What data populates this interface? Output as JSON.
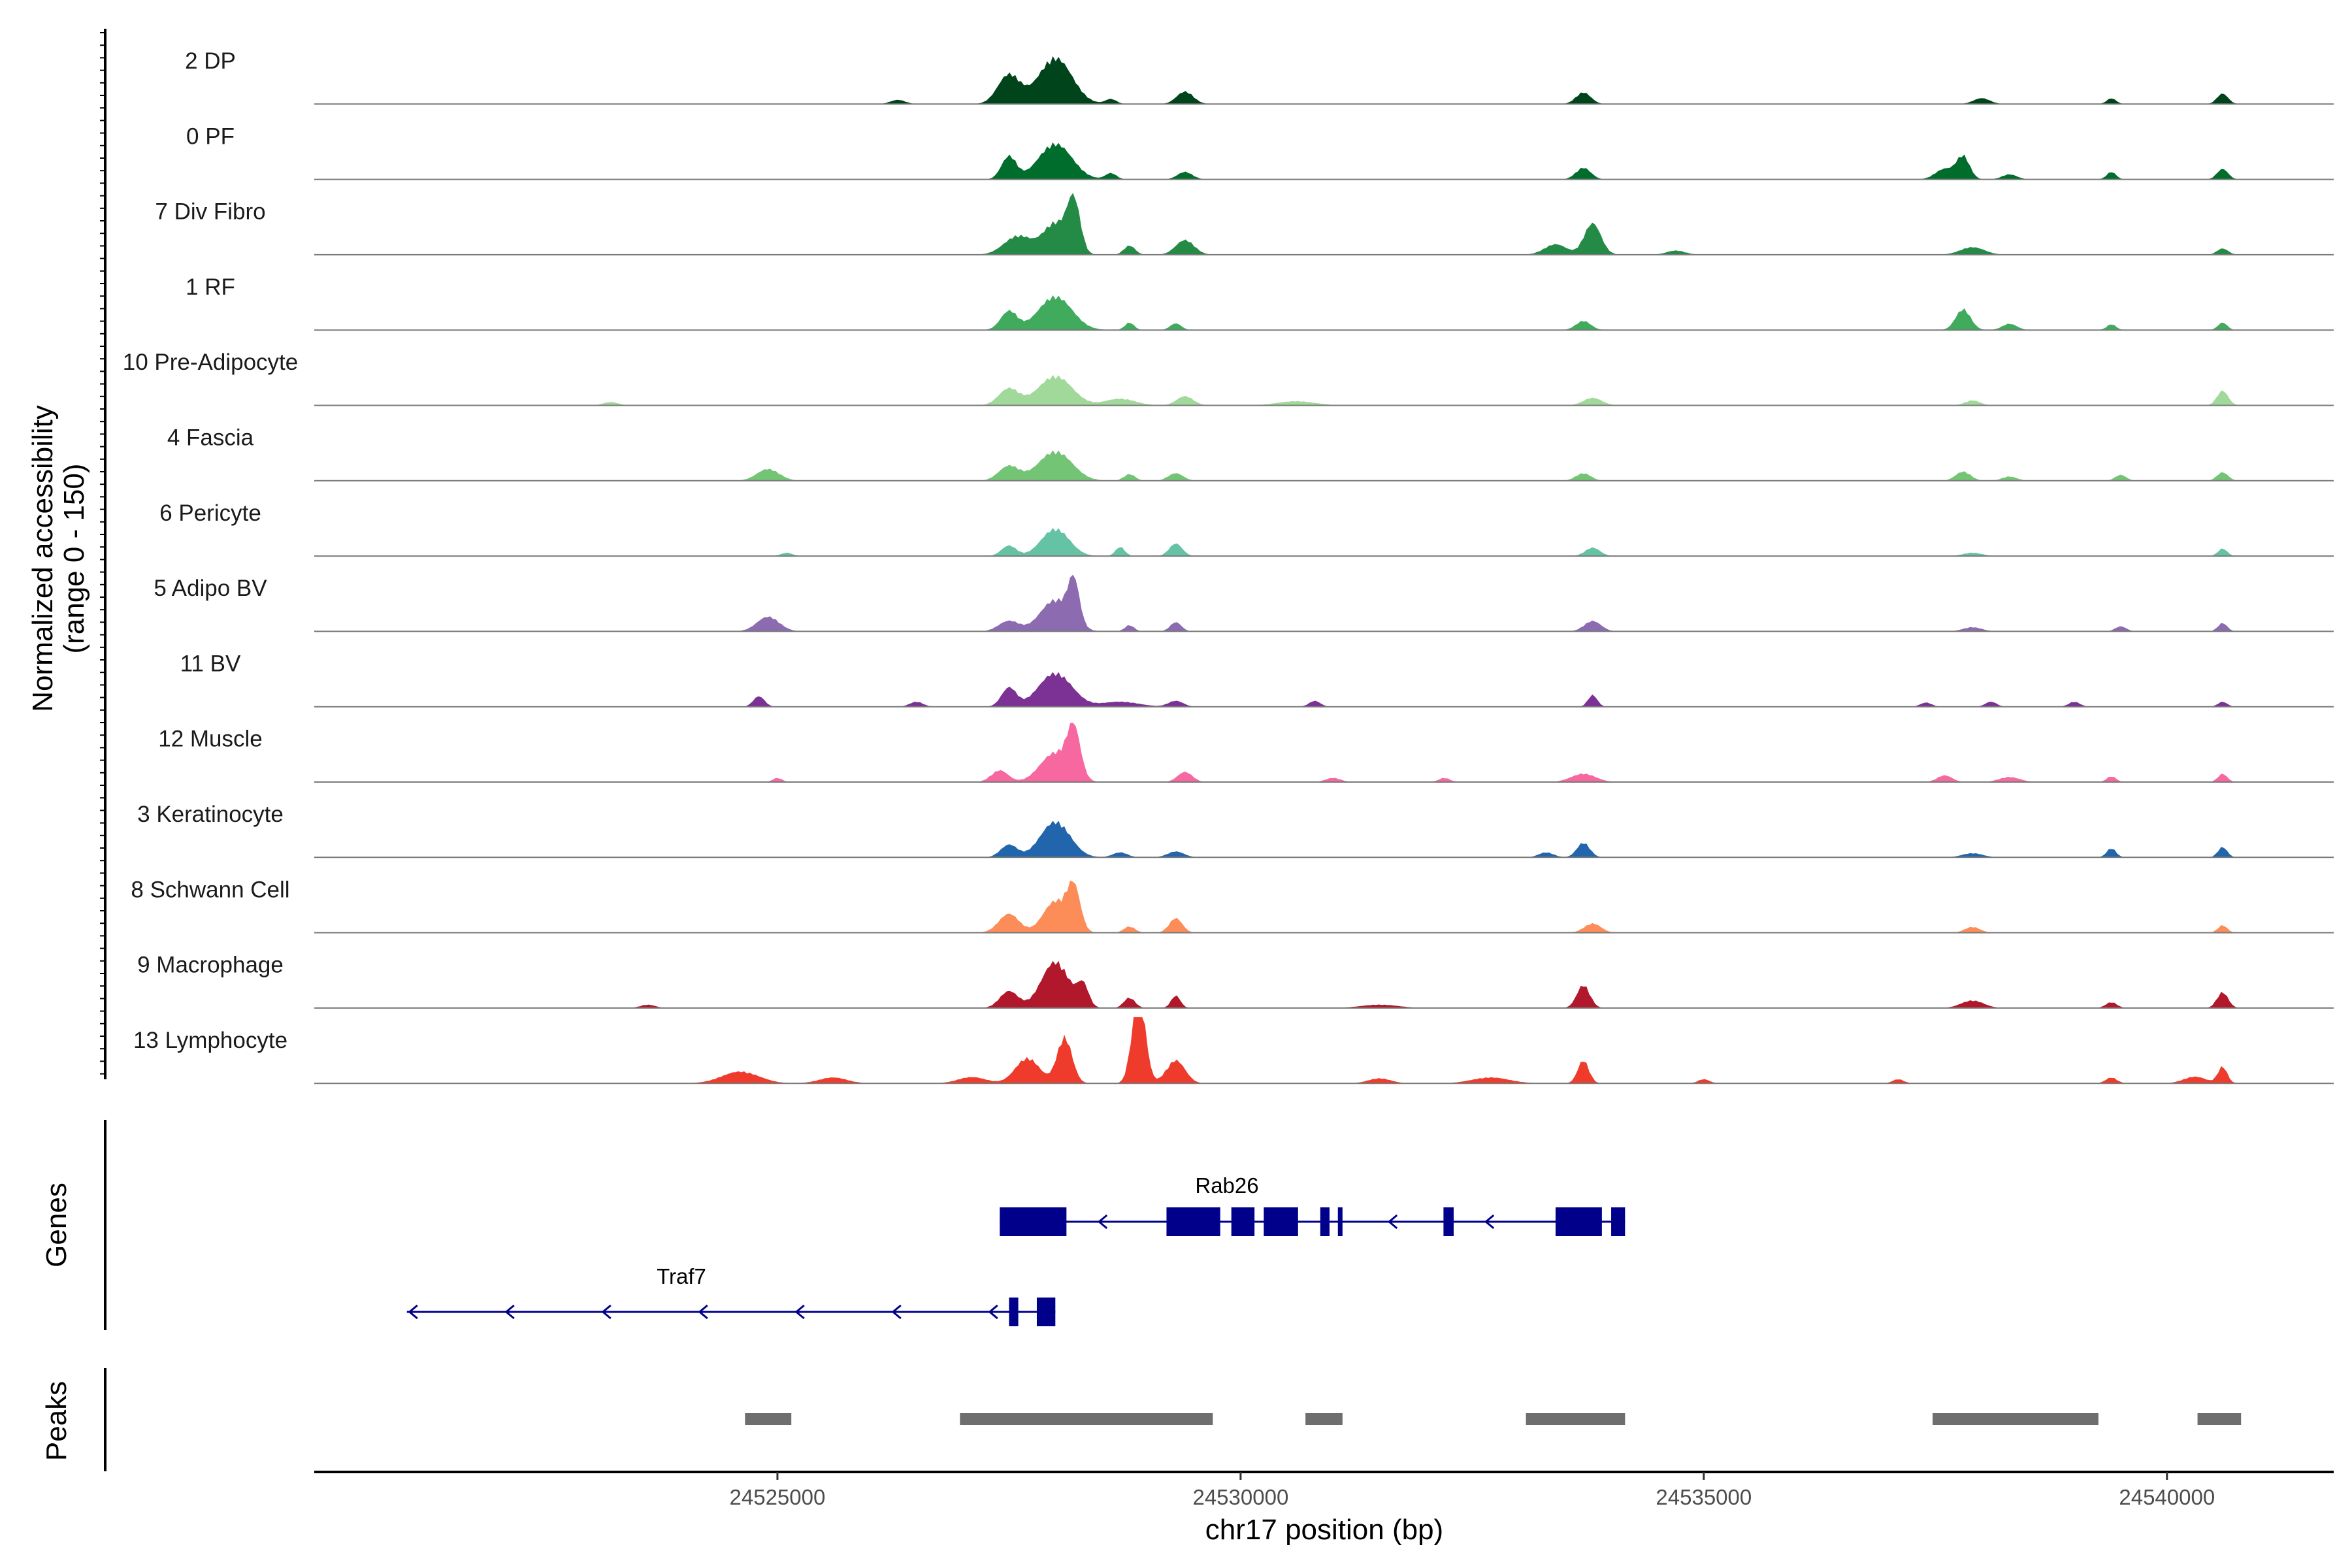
{
  "chart_data": {
    "type": "area",
    "ylabel_lines": [
      "Normalized accessibility",
      "(range 0 - 150)"
    ],
    "xlabel": "chr17 position (bp)",
    "xlim": [
      24520000,
      24541800
    ],
    "x_ticks": [
      24525000,
      24530000,
      24535000,
      24540000
    ],
    "x_tick_labels": [
      "24525000",
      "24530000",
      "24535000",
      "24540000"
    ],
    "y_range": [
      0,
      150
    ],
    "tracks": [
      {
        "name": "2 DP",
        "color": "#00441b",
        "peaks": [
          [
            24526300,
            10,
            80
          ],
          [
            24527500,
            70,
            120
          ],
          [
            24528000,
            110,
            180
          ],
          [
            24528600,
            12,
            60
          ],
          [
            24529400,
            30,
            90
          ],
          [
            24533700,
            28,
            80
          ],
          [
            24538000,
            14,
            90
          ],
          [
            24539400,
            14,
            50
          ],
          [
            24540600,
            25,
            60
          ]
        ]
      },
      {
        "name": "0 PF",
        "color": "#006d2c",
        "peaks": [
          [
            24527500,
            55,
            80
          ],
          [
            24528000,
            85,
            180
          ],
          [
            24528600,
            15,
            60
          ],
          [
            24529400,
            18,
            80
          ],
          [
            24533700,
            28,
            80
          ],
          [
            24537600,
            25,
            100
          ],
          [
            24537800,
            55,
            70
          ],
          [
            24538300,
            12,
            80
          ],
          [
            24539400,
            18,
            50
          ],
          [
            24540600,
            25,
            60
          ]
        ]
      },
      {
        "name": "7 Div Fibro",
        "color": "#238b45",
        "peaks": [
          [
            24527600,
            45,
            150
          ],
          [
            24528000,
            75,
            130
          ],
          [
            24528200,
            120,
            70
          ],
          [
            24528800,
            22,
            60
          ],
          [
            24529400,
            35,
            100
          ],
          [
            24533400,
            25,
            120
          ],
          [
            24533800,
            75,
            90
          ],
          [
            24534700,
            10,
            100
          ],
          [
            24537900,
            18,
            130
          ],
          [
            24540600,
            15,
            60
          ]
        ]
      },
      {
        "name": "1 RF",
        "color": "#41ab5d",
        "peaks": [
          [
            24527500,
            45,
            90
          ],
          [
            24528000,
            80,
            180
          ],
          [
            24528800,
            18,
            50
          ],
          [
            24529300,
            16,
            60
          ],
          [
            24533700,
            22,
            80
          ],
          [
            24537800,
            50,
            80
          ],
          [
            24538300,
            15,
            80
          ],
          [
            24539400,
            14,
            50
          ],
          [
            24540600,
            18,
            50
          ]
        ]
      },
      {
        "name": "10 Pre-Adipocyte",
        "color": "#a1d99b",
        "peaks": [
          [
            24523200,
            8,
            80
          ],
          [
            24527500,
            40,
            110
          ],
          [
            24528000,
            70,
            180
          ],
          [
            24528700,
            16,
            160
          ],
          [
            24529400,
            22,
            90
          ],
          [
            24530600,
            10,
            200
          ],
          [
            24533800,
            18,
            100
          ],
          [
            24537900,
            12,
            80
          ],
          [
            24540600,
            35,
            60
          ]
        ]
      },
      {
        "name": "4 Fascia",
        "color": "#74c476",
        "peaks": [
          [
            24524900,
            28,
            120
          ],
          [
            24527500,
            35,
            110
          ],
          [
            24528000,
            70,
            180
          ],
          [
            24528800,
            16,
            60
          ],
          [
            24529300,
            18,
            80
          ],
          [
            24533700,
            18,
            80
          ],
          [
            24537800,
            22,
            80
          ],
          [
            24538300,
            10,
            80
          ],
          [
            24539500,
            14,
            60
          ],
          [
            24540600,
            20,
            60
          ]
        ]
      },
      {
        "name": "6 Pericyte",
        "color": "#66c2a4",
        "peaks": [
          [
            24525100,
            8,
            60
          ],
          [
            24527500,
            25,
            80
          ],
          [
            24528000,
            65,
            150
          ],
          [
            24528700,
            22,
            50
          ],
          [
            24529300,
            30,
            70
          ],
          [
            24533800,
            20,
            80
          ],
          [
            24537900,
            8,
            100
          ],
          [
            24540600,
            18,
            50
          ]
        ]
      },
      {
        "name": "5 Adipo BV",
        "color": "#8c6bb1",
        "peaks": [
          [
            24524900,
            35,
            120
          ],
          [
            24527500,
            25,
            110
          ],
          [
            24528000,
            75,
            160
          ],
          [
            24528200,
            100,
            60
          ],
          [
            24528800,
            15,
            50
          ],
          [
            24529300,
            22,
            60
          ],
          [
            24533800,
            25,
            90
          ],
          [
            24537900,
            10,
            100
          ],
          [
            24539500,
            12,
            60
          ],
          [
            24540600,
            20,
            50
          ]
        ]
      },
      {
        "name": "11 BV",
        "color": "#7b3294",
        "peaks": [
          [
            24524800,
            25,
            60
          ],
          [
            24526500,
            12,
            70
          ],
          [
            24527500,
            45,
            80
          ],
          [
            24528000,
            80,
            180
          ],
          [
            24528700,
            12,
            200
          ],
          [
            24529300,
            14,
            80
          ],
          [
            24530800,
            14,
            60
          ],
          [
            24533800,
            28,
            50
          ],
          [
            24537400,
            10,
            60
          ],
          [
            24538100,
            12,
            60
          ],
          [
            24539000,
            12,
            60
          ],
          [
            24540600,
            12,
            50
          ]
        ]
      },
      {
        "name": "12 Muscle",
        "color": "#f768a1",
        "peaks": [
          [
            24525000,
            10,
            50
          ],
          [
            24527400,
            28,
            90
          ],
          [
            24528000,
            70,
            160
          ],
          [
            24528200,
            110,
            70
          ],
          [
            24529400,
            24,
            80
          ],
          [
            24531000,
            10,
            80
          ],
          [
            24532200,
            10,
            60
          ],
          [
            24533700,
            20,
            130
          ],
          [
            24537600,
            16,
            80
          ],
          [
            24538300,
            12,
            110
          ],
          [
            24539400,
            14,
            50
          ],
          [
            24540600,
            20,
            50
          ]
        ]
      },
      {
        "name": "3 Keratinocyte",
        "color": "#2166ac",
        "peaks": [
          [
            24527500,
            30,
            90
          ],
          [
            24528000,
            85,
            160
          ],
          [
            24528700,
            12,
            80
          ],
          [
            24529300,
            14,
            90
          ],
          [
            24533300,
            12,
            80
          ],
          [
            24533700,
            35,
            70
          ],
          [
            24537900,
            10,
            110
          ],
          [
            24539400,
            22,
            50
          ],
          [
            24540600,
            25,
            50
          ]
        ]
      },
      {
        "name": "8 Schwann Cell",
        "color": "#fc8d59",
        "peaks": [
          [
            24527500,
            45,
            110
          ],
          [
            24528000,
            75,
            130
          ],
          [
            24528200,
            100,
            70
          ],
          [
            24528800,
            15,
            60
          ],
          [
            24529300,
            35,
            70
          ],
          [
            24533800,
            22,
            90
          ],
          [
            24537900,
            14,
            80
          ],
          [
            24540600,
            18,
            50
          ]
        ]
      },
      {
        "name": "9 Macrophage",
        "color": "#b2182b",
        "peaks": [
          [
            24523600,
            8,
            80
          ],
          [
            24527500,
            40,
            100
          ],
          [
            24528000,
            110,
            150
          ],
          [
            24528300,
            50,
            60
          ],
          [
            24528800,
            25,
            60
          ],
          [
            24529300,
            30,
            50
          ],
          [
            24531500,
            8,
            200
          ],
          [
            24533700,
            55,
            70
          ],
          [
            24537900,
            18,
            120
          ],
          [
            24539400,
            14,
            60
          ],
          [
            24540600,
            38,
            60
          ]
        ]
      },
      {
        "name": "13 Lymphocyte",
        "color": "#ef3b2c",
        "peaks": [
          [
            24524600,
            28,
            200
          ],
          [
            24525600,
            14,
            150
          ],
          [
            24527100,
            15,
            150
          ],
          [
            24527700,
            60,
            130
          ],
          [
            24528100,
            110,
            80
          ],
          [
            24528900,
            220,
            70
          ],
          [
            24529300,
            55,
            100
          ],
          [
            24531500,
            12,
            120
          ],
          [
            24532700,
            14,
            200
          ],
          [
            24533700,
            55,
            60
          ],
          [
            24535000,
            10,
            60
          ],
          [
            24537100,
            10,
            60
          ],
          [
            24539400,
            14,
            60
          ],
          [
            24540300,
            16,
            120
          ],
          [
            24540600,
            40,
            50
          ]
        ]
      }
    ],
    "genes_label": "Genes",
    "genes": [
      {
        "name": "Rab26",
        "strand": "-",
        "start": 24527400,
        "end": 24534150,
        "exons": [
          [
            24527400,
            24528120
          ],
          [
            24529200,
            24529780
          ],
          [
            24529900,
            24530150
          ],
          [
            24530250,
            24530620
          ],
          [
            24530860,
            24530960
          ],
          [
            24531050,
            24531100
          ],
          [
            24532190,
            24532300
          ],
          [
            24533400,
            24533900
          ],
          [
            24534000,
            24534150
          ]
        ]
      },
      {
        "name": "Traf7",
        "strand": "-",
        "start": 24521000,
        "end": 24528000,
        "exons": [
          [
            24527500,
            24527600
          ],
          [
            24527800,
            24528000
          ]
        ]
      }
    ],
    "peaks_label": "Peaks",
    "peak_regions": [
      [
        24524650,
        24525150
      ],
      [
        24526970,
        24529700
      ],
      [
        24530700,
        24531100
      ],
      [
        24533080,
        24534150
      ],
      [
        24537470,
        24539260
      ],
      [
        24540330,
        24540800
      ]
    ]
  }
}
